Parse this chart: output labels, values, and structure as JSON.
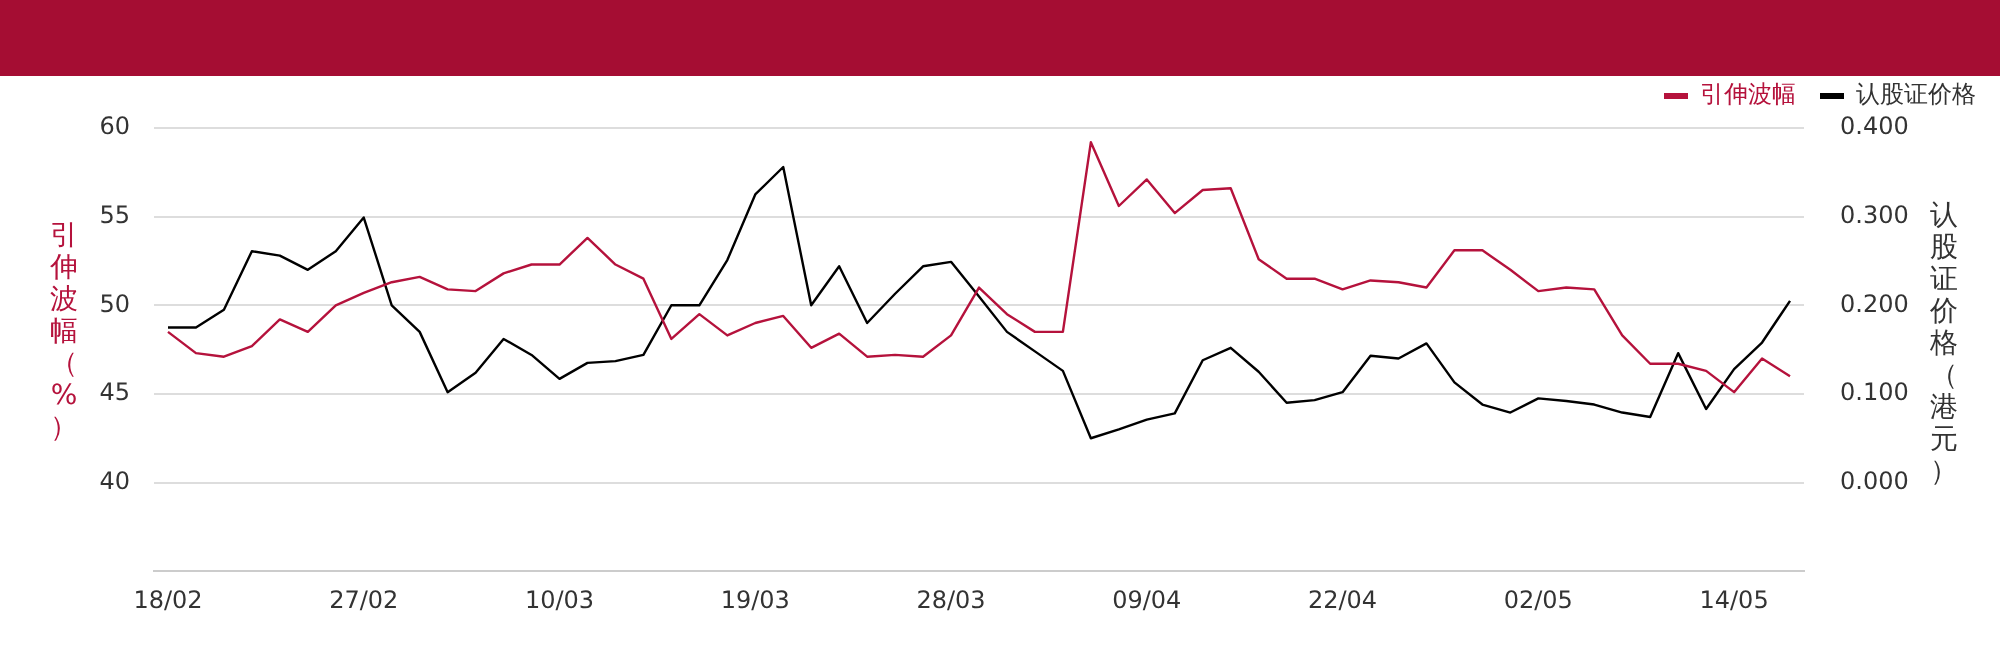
{
  "chart_data": {
    "type": "line",
    "ylabel": "引伸波幅（%）",
    "y2label": "认股证价格（港元）",
    "categories": [
      "18/02",
      null,
      null,
      null,
      null,
      null,
      null,
      "27/02",
      null,
      null,
      null,
      null,
      null,
      null,
      "10/03",
      null,
      null,
      null,
      null,
      null,
      null,
      "19/03",
      null,
      null,
      null,
      null,
      null,
      null,
      "28/03",
      null,
      null,
      null,
      null,
      null,
      null,
      "09/04",
      null,
      null,
      null,
      null,
      null,
      null,
      "22/04",
      null,
      null,
      null,
      null,
      null,
      null,
      "02/05",
      null,
      null,
      null,
      null,
      null,
      null,
      "14/05",
      null,
      null
    ],
    "series": [
      {
        "name": "引伸波幅",
        "color": "#b5123c",
        "values": [
          48.5,
          47.3,
          47.1,
          47.7,
          49.2,
          48.5,
          50.0,
          50.7,
          51.3,
          51.6,
          50.9,
          50.8,
          51.8,
          52.3,
          52.3,
          53.8,
          52.3,
          51.5,
          48.1,
          49.5,
          48.3,
          49.0,
          49.4,
          47.6,
          48.4,
          47.1,
          47.2,
          47.1,
          48.3,
          51.0,
          49.5,
          48.5,
          48.5,
          59.2,
          55.6,
          57.1,
          55.2,
          56.5,
          56.6,
          52.6,
          51.5,
          51.5,
          50.9,
          51.4,
          51.3,
          51.0,
          53.1,
          53.1,
          52.0,
          50.8,
          51.0,
          50.9,
          48.3,
          46.7,
          46.7,
          46.3,
          45.1,
          47.0,
          46.0
        ]
      },
      {
        "name": "认股证价格",
        "color": "#000000",
        "axis": "y2",
        "values": [
          0.175,
          0.175,
          0.195,
          0.261,
          0.256,
          0.24,
          0.261,
          0.299,
          0.2,
          0.17,
          0.102,
          0.124,
          0.162,
          0.144,
          0.117,
          0.135,
          0.137,
          0.144,
          0.2,
          0.2,
          0.251,
          0.325,
          0.356,
          0.2,
          0.244,
          0.18,
          0.213,
          0.244,
          0.249,
          0.21,
          0.17,
          0.148,
          0.126,
          0.05,
          0.06,
          0.071,
          0.078,
          0.138,
          0.152,
          0.125,
          0.09,
          0.093,
          0.102,
          0.143,
          0.14,
          0.157,
          0.113,
          0.088,
          0.079,
          0.095,
          0.092,
          0.088,
          0.079,
          0.074,
          0.146,
          0.083,
          0.128,
          0.158,
          0.205
        ]
      }
    ],
    "ylim": [
      35,
      60
    ],
    "yticks": [
      40,
      45,
      50,
      55,
      60
    ],
    "y2lim": [
      -0.1,
      0.4
    ],
    "y2ticks": [
      {
        "value": 0,
        "label": "0.000"
      },
      {
        "value": 0.1,
        "label": "0.100"
      },
      {
        "value": 0.2,
        "label": "0.200"
      },
      {
        "value": 0.3,
        "label": "0.300"
      },
      {
        "value": 0.4,
        "label": "0.400"
      }
    ],
    "grid": "y",
    "legend": "top right"
  }
}
